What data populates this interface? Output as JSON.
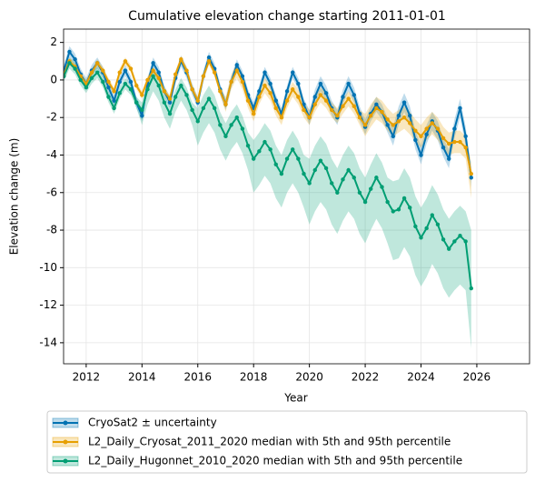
{
  "chart_data": {
    "type": "line",
    "title": "Cumulative elevation change starting 2011-01-01",
    "xlabel": "Year",
    "ylabel": "Elevation change (m)",
    "xlim": [
      2011.19,
      2027.89
    ],
    "ylim": [
      -15.12,
      2.71
    ],
    "xticks": [
      2012,
      2014,
      2016,
      2018,
      2020,
      2022,
      2024,
      2026
    ],
    "yticks": [
      -14,
      -12,
      -10,
      -8,
      -6,
      -4,
      -2,
      0,
      2
    ],
    "grid": true,
    "legend": "below",
    "x": [
      2011.2,
      2011.4,
      2011.6,
      2011.8,
      2012.0,
      2012.2,
      2012.4,
      2012.6,
      2012.8,
      2013.0,
      2013.2,
      2013.4,
      2013.6,
      2013.8,
      2014.0,
      2014.2,
      2014.4,
      2014.6,
      2014.8,
      2015.0,
      2015.2,
      2015.4,
      2015.6,
      2015.8,
      2016.0,
      2016.2,
      2016.4,
      2016.6,
      2016.8,
      2017.0,
      2017.2,
      2017.4,
      2017.6,
      2017.8,
      2018.0,
      2018.2,
      2018.4,
      2018.6,
      2018.8,
      2019.0,
      2019.2,
      2019.4,
      2019.6,
      2019.8,
      2020.0,
      2020.2,
      2020.4,
      2020.6,
      2020.8,
      2021.0,
      2021.2,
      2021.4,
      2021.6,
      2021.8,
      2022.0,
      2022.2,
      2022.4,
      2022.6,
      2022.8,
      2023.0,
      2023.2,
      2023.4,
      2023.6,
      2023.8,
      2024.0,
      2024.2,
      2024.4,
      2024.6,
      2024.8,
      2025.0,
      2025.2,
      2025.4,
      2025.6,
      2025.8
    ],
    "series": [
      {
        "name": "CryoSat2 ± uncertainty",
        "color": "#0072b2",
        "values": [
          0.5,
          1.5,
          1.1,
          0.3,
          -0.2,
          0.5,
          0.9,
          0.4,
          -0.4,
          -1.1,
          -0.1,
          0.5,
          -0.1,
          -1.2,
          -1.9,
          -0.2,
          0.9,
          0.4,
          -0.6,
          -1.2,
          0.1,
          1.0,
          0.4,
          -0.5,
          -1.2,
          0.2,
          1.2,
          0.6,
          -0.5,
          -1.3,
          -0.1,
          0.8,
          0.2,
          -0.8,
          -1.5,
          -0.6,
          0.4,
          -0.2,
          -1.1,
          -1.8,
          -0.6,
          0.4,
          -0.2,
          -1.3,
          -2.0,
          -0.9,
          -0.2,
          -0.7,
          -1.5,
          -2.0,
          -0.9,
          -0.2,
          -0.8,
          -1.8,
          -2.5,
          -1.8,
          -1.3,
          -1.7,
          -2.4,
          -3.0,
          -1.9,
          -1.2,
          -1.9,
          -3.2,
          -4.0,
          -2.9,
          -2.2,
          -2.7,
          -3.6,
          -4.2,
          -2.6,
          -1.5,
          -3.0,
          -5.2
        ],
        "error": [
          0.3,
          0.3,
          0.3,
          0.3,
          0.3,
          0.3,
          0.3,
          0.3,
          0.3,
          0.3,
          0.3,
          0.3,
          0.3,
          0.3,
          0.3,
          0.3,
          0.3,
          0.3,
          0.3,
          0.3,
          0.3,
          0.3,
          0.3,
          0.3,
          0.3,
          0.3,
          0.3,
          0.3,
          0.3,
          0.3,
          0.3,
          0.3,
          0.3,
          0.3,
          0.3,
          0.3,
          0.3,
          0.3,
          0.3,
          0.3,
          0.3,
          0.3,
          0.3,
          0.3,
          0.4,
          0.4,
          0.4,
          0.4,
          0.4,
          0.4,
          0.4,
          0.4,
          0.4,
          0.4,
          0.4,
          0.4,
          0.4,
          0.4,
          0.4,
          0.5,
          0.5,
          0.5,
          0.5,
          0.5,
          0.5,
          0.5,
          0.5,
          0.5,
          0.5,
          0.5,
          0.5,
          0.5,
          0.5,
          0.5
        ]
      },
      {
        "name": "L2_Daily_Cryosat_2011_2020 median with 5th and 95th percentile",
        "color": "#e69f00",
        "values": [
          0.3,
          1.0,
          0.7,
          0.2,
          -0.2,
          0.4,
          0.9,
          0.5,
          -0.1,
          -0.6,
          0.4,
          1.0,
          0.6,
          -0.3,
          -0.8,
          0.0,
          0.5,
          0.1,
          -0.6,
          -1.0,
          0.3,
          1.1,
          0.5,
          -0.5,
          -1.1,
          0.2,
          1.0,
          0.4,
          -0.6,
          -1.3,
          -0.1,
          0.5,
          -0.1,
          -1.1,
          -1.8,
          -0.9,
          -0.3,
          -0.7,
          -1.5,
          -2.0,
          -1.1,
          -0.5,
          -0.9,
          -1.6,
          -2.0,
          -1.3,
          -0.8,
          -1.1,
          -1.6,
          -1.9,
          -1.4,
          -1.0,
          -1.4,
          -2.0,
          -2.4,
          -1.9,
          -1.5,
          -1.7,
          -2.1,
          -2.4,
          -2.2,
          -2.0,
          -2.3,
          -2.7,
          -3.0,
          -2.6,
          -2.3,
          -2.6,
          -3.1,
          -3.4,
          -3.3,
          -3.3,
          -3.6,
          -5.0
        ],
        "lower": [
          0.1,
          0.8,
          0.5,
          0.0,
          -0.4,
          0.2,
          0.7,
          0.3,
          -0.3,
          -0.8,
          0.2,
          0.8,
          0.4,
          -0.5,
          -1.0,
          -0.2,
          0.3,
          -0.1,
          -0.8,
          -1.2,
          0.1,
          0.9,
          0.3,
          -0.7,
          -1.3,
          0.0,
          0.8,
          0.2,
          -0.8,
          -1.7,
          -0.5,
          0.1,
          -0.5,
          -1.5,
          -2.2,
          -1.3,
          -0.7,
          -1.1,
          -1.9,
          -2.4,
          -1.5,
          -0.9,
          -1.3,
          -2.0,
          -2.4,
          -1.7,
          -1.2,
          -1.5,
          -2.0,
          -2.3,
          -1.8,
          -1.4,
          -1.8,
          -2.4,
          -3.0,
          -2.5,
          -2.1,
          -2.3,
          -2.7,
          -3.0,
          -2.8,
          -2.6,
          -2.9,
          -3.3,
          -3.6,
          -3.2,
          -2.9,
          -3.2,
          -3.7,
          -4.0,
          -3.9,
          -3.9,
          -4.2,
          -6.3
        ],
        "upper": [
          0.5,
          1.2,
          0.9,
          0.4,
          0.0,
          0.6,
          1.1,
          0.7,
          0.1,
          -0.4,
          0.6,
          1.2,
          0.8,
          -0.1,
          -0.6,
          0.2,
          0.7,
          0.3,
          -0.4,
          -0.8,
          0.5,
          1.3,
          0.7,
          -0.3,
          -0.9,
          0.4,
          1.2,
          0.6,
          -0.4,
          -0.9,
          0.3,
          0.9,
          0.3,
          -0.7,
          -1.4,
          -0.5,
          0.1,
          -0.3,
          -1.1,
          -1.6,
          -0.7,
          -0.1,
          -0.5,
          -1.2,
          -1.6,
          -0.9,
          -0.4,
          -0.7,
          -1.2,
          -1.5,
          -1.0,
          -0.6,
          -1.0,
          -1.6,
          -1.8,
          -1.3,
          -0.9,
          -1.1,
          -1.5,
          -1.8,
          -1.6,
          -1.4,
          -1.7,
          -2.1,
          -2.4,
          -2.0,
          -1.7,
          -2.0,
          -2.5,
          -2.8,
          -2.7,
          -2.7,
          -3.0,
          -4.4
        ]
      },
      {
        "name": "L2_Daily_Hugonnet_2010_2020 median with 5th and 95th percentile",
        "color": "#009e73",
        "values": [
          0.2,
          0.9,
          0.6,
          0.0,
          -0.4,
          0.1,
          0.4,
          -0.1,
          -0.9,
          -1.5,
          -0.7,
          -0.2,
          -0.5,
          -1.2,
          -1.6,
          -0.5,
          0.2,
          -0.3,
          -1.2,
          -1.8,
          -0.9,
          -0.3,
          -0.8,
          -1.6,
          -2.2,
          -1.5,
          -1.0,
          -1.5,
          -2.4,
          -3.0,
          -2.4,
          -2.0,
          -2.6,
          -3.5,
          -4.2,
          -3.8,
          -3.3,
          -3.7,
          -4.5,
          -5.0,
          -4.2,
          -3.7,
          -4.2,
          -5.0,
          -5.5,
          -4.8,
          -4.3,
          -4.7,
          -5.5,
          -6.0,
          -5.3,
          -4.8,
          -5.2,
          -6.0,
          -6.5,
          -5.8,
          -5.2,
          -5.7,
          -6.5,
          -7.0,
          -6.9,
          -6.3,
          -6.8,
          -7.8,
          -8.4,
          -7.9,
          -7.2,
          -7.7,
          -8.5,
          -9.0,
          -8.6,
          -8.3,
          -8.6,
          -11.1
        ],
        "lower": [
          -0.1,
          0.6,
          0.3,
          -0.3,
          -0.7,
          -0.2,
          0.1,
          -0.4,
          -1.2,
          -1.8,
          -1.0,
          -0.5,
          -0.8,
          -1.5,
          -2.4,
          -1.3,
          -0.6,
          -1.1,
          -2.0,
          -2.6,
          -1.7,
          -1.1,
          -1.6,
          -2.4,
          -3.5,
          -2.8,
          -2.3,
          -2.8,
          -3.7,
          -4.3,
          -3.7,
          -3.3,
          -3.9,
          -4.8,
          -6.0,
          -5.6,
          -5.1,
          -5.5,
          -6.3,
          -6.8,
          -6.0,
          -5.5,
          -6.0,
          -6.8,
          -7.7,
          -7.0,
          -6.5,
          -6.9,
          -7.7,
          -8.2,
          -7.5,
          -7.0,
          -7.4,
          -8.2,
          -8.7,
          -8.0,
          -7.4,
          -7.9,
          -8.7,
          -9.6,
          -9.5,
          -8.9,
          -9.4,
          -10.4,
          -11.0,
          -10.5,
          -9.8,
          -10.3,
          -11.1,
          -11.6,
          -11.2,
          -10.9,
          -11.2,
          -14.3
        ],
        "upper": [
          0.5,
          1.2,
          0.9,
          0.3,
          -0.1,
          0.4,
          0.7,
          0.2,
          -0.6,
          -1.2,
          -0.4,
          0.1,
          -0.2,
          -0.9,
          -1.2,
          -0.1,
          0.6,
          0.1,
          -0.8,
          -1.4,
          -0.5,
          0.1,
          -0.4,
          -1.2,
          -1.5,
          -0.8,
          -0.3,
          -0.8,
          -1.7,
          -2.3,
          -1.7,
          -1.3,
          -1.9,
          -2.8,
          -3.2,
          -2.8,
          -2.3,
          -2.7,
          -3.5,
          -4.0,
          -3.2,
          -2.7,
          -3.2,
          -4.0,
          -4.2,
          -3.5,
          -3.0,
          -3.4,
          -4.2,
          -4.7,
          -4.0,
          -3.5,
          -3.9,
          -4.7,
          -5.2,
          -4.5,
          -3.9,
          -4.4,
          -5.2,
          -5.4,
          -5.3,
          -4.7,
          -5.2,
          -6.2,
          -6.8,
          -6.3,
          -5.6,
          -6.1,
          -6.9,
          -7.4,
          -7.0,
          -6.7,
          -7.0,
          -8.0
        ]
      }
    ]
  }
}
